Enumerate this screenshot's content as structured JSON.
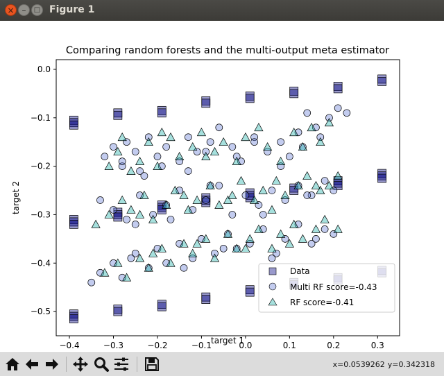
{
  "window": {
    "title": "Figure 1",
    "close_glyph": "×",
    "min_glyph": "–",
    "max_glyph": "□"
  },
  "toolbar": {
    "tools": [
      {
        "name": "home-icon"
      },
      {
        "name": "back-arrow-icon"
      },
      {
        "name": "forward-arrow-icon"
      },
      {
        "name": "pan-move-icon"
      },
      {
        "name": "zoom-magnifier-icon"
      },
      {
        "name": "configure-subplots-icon"
      },
      {
        "name": "save-floppy-icon"
      }
    ],
    "coords": {
      "x": "x=0.0539262",
      "y": "y=0.342318"
    }
  },
  "chart_data": {
    "type": "scatter",
    "title": "Comparing random forests and the multi-output meta estimator",
    "xlabel": "target 1",
    "ylabel": "target 2",
    "xlim": [
      -0.43,
      0.35
    ],
    "ylim": [
      -0.55,
      0.02
    ],
    "xticks": [
      -0.4,
      -0.3,
      -0.2,
      -0.1,
      0.0,
      0.1,
      0.2,
      0.3
    ],
    "xtick_labels": [
      "−0.4",
      "−0.3",
      "−0.2",
      "−0.1",
      "0.0",
      "0.1",
      "0.2",
      "0.3"
    ],
    "yticks": [
      0.0,
      -0.1,
      -0.2,
      -0.3,
      -0.4,
      -0.5
    ],
    "ytick_labels": [
      "0.0",
      "−0.1",
      "−0.2",
      "−0.3",
      "−0.4",
      "−0.5"
    ],
    "grid": false,
    "legend_position": "lower-right",
    "colors": {
      "data": "#000080",
      "multi_rf": "#6a80d8",
      "rf": "#20b2aa"
    },
    "series": [
      {
        "name": "Data",
        "marker": "square",
        "x": [
          -0.39,
          -0.39,
          -0.39,
          -0.39,
          -0.39,
          -0.39,
          -0.39,
          -0.39,
          -0.39,
          -0.29,
          -0.29,
          -0.29,
          -0.29,
          -0.29,
          -0.29,
          -0.29,
          -0.19,
          -0.19,
          -0.19,
          -0.19,
          -0.19,
          -0.19,
          -0.19,
          -0.09,
          -0.09,
          -0.09,
          -0.09,
          -0.09,
          -0.09,
          -0.09,
          0.01,
          0.01,
          0.01,
          0.01,
          0.01,
          0.01,
          0.01,
          0.11,
          0.11,
          0.11,
          0.11,
          0.11,
          0.11,
          0.21,
          0.21,
          0.21,
          0.21,
          0.21,
          0.21,
          0.21,
          0.31,
          0.31,
          0.31,
          0.31,
          0.31,
          0.31,
          0.31
        ],
        "y": [
          -0.105,
          -0.11,
          -0.115,
          -0.31,
          -0.315,
          -0.32,
          -0.505,
          -0.51,
          -0.515,
          -0.09,
          -0.095,
          -0.295,
          -0.3,
          -0.305,
          -0.495,
          -0.5,
          -0.085,
          -0.09,
          -0.28,
          -0.285,
          -0.29,
          -0.485,
          -0.49,
          -0.065,
          -0.07,
          -0.265,
          -0.27,
          -0.275,
          -0.47,
          -0.475,
          -0.055,
          -0.06,
          -0.255,
          -0.26,
          -0.265,
          -0.455,
          -0.46,
          -0.045,
          -0.05,
          -0.245,
          -0.25,
          -0.44,
          -0.445,
          -0.035,
          -0.04,
          -0.23,
          -0.235,
          -0.24,
          -0.43,
          -0.435,
          -0.02,
          -0.025,
          -0.215,
          -0.22,
          -0.225,
          -0.415,
          -0.42
        ]
      },
      {
        "name": "Multi RF score=-0.43",
        "marker": "circle",
        "x": [
          -0.32,
          -0.3,
          -0.28,
          -0.27,
          -0.25,
          -0.24,
          -0.22,
          -0.2,
          -0.18,
          -0.15,
          -0.13,
          -0.11,
          -0.08,
          -0.06,
          -0.03,
          -0.01,
          0.02,
          0.05,
          0.08,
          0.1,
          0.12,
          0.14,
          0.16,
          0.19,
          0.21,
          0.23,
          -0.33,
          -0.3,
          -0.27,
          -0.24,
          -0.21,
          -0.18,
          -0.15,
          -0.12,
          -0.09,
          -0.06,
          -0.03,
          0.0,
          0.03,
          0.06,
          0.09,
          0.12,
          0.15,
          0.18,
          0.2,
          -0.25,
          -0.17,
          -0.08,
          0.04,
          0.14,
          -0.35,
          -0.33,
          -0.3,
          -0.28,
          -0.25,
          -0.22,
          -0.2,
          -0.18,
          -0.15,
          -0.12,
          -0.1,
          -0.07,
          -0.04,
          -0.02,
          0.01,
          0.04,
          0.07,
          0.09,
          0.12,
          0.15,
          0.18,
          0.2,
          -0.26,
          -0.14,
          -0.05,
          0.06,
          0.16,
          -0.28,
          -0.23,
          -0.19,
          -0.13,
          -0.09,
          -0.02,
          0.02,
          0.08,
          0.13,
          0.17
        ],
        "y": [
          -0.18,
          -0.16,
          -0.2,
          -0.15,
          -0.17,
          -0.21,
          -0.14,
          -0.18,
          -0.16,
          -0.19,
          -0.14,
          -0.17,
          -0.15,
          -0.12,
          -0.16,
          -0.19,
          -0.14,
          -0.17,
          -0.15,
          -0.18,
          -0.13,
          -0.09,
          -0.12,
          -0.1,
          -0.08,
          -0.09,
          -0.27,
          -0.29,
          -0.31,
          -0.26,
          -0.3,
          -0.28,
          -0.25,
          -0.29,
          -0.27,
          -0.24,
          -0.3,
          -0.26,
          -0.28,
          -0.25,
          -0.27,
          -0.24,
          -0.26,
          -0.23,
          -0.25,
          -0.32,
          -0.31,
          -0.24,
          -0.3,
          -0.26,
          -0.44,
          -0.42,
          -0.4,
          -0.43,
          -0.38,
          -0.41,
          -0.37,
          -0.4,
          -0.36,
          -0.39,
          -0.35,
          -0.38,
          -0.34,
          -0.37,
          -0.36,
          -0.33,
          -0.38,
          -0.35,
          -0.32,
          -0.36,
          -0.33,
          -0.34,
          -0.39,
          -0.41,
          -0.37,
          -0.39,
          -0.35,
          -0.19,
          -0.22,
          -0.2,
          -0.21,
          -0.17,
          -0.18,
          -0.15,
          -0.2,
          -0.16,
          -0.14
        ]
      },
      {
        "name": "RF score=-0.41",
        "marker": "triangle",
        "x": [
          -0.31,
          -0.29,
          -0.26,
          -0.24,
          -0.22,
          -0.2,
          -0.17,
          -0.15,
          -0.12,
          -0.1,
          -0.07,
          -0.05,
          -0.02,
          0.0,
          0.03,
          0.05,
          0.08,
          0.11,
          0.13,
          0.15,
          0.17,
          0.19,
          -0.28,
          -0.19,
          -0.09,
          -0.34,
          -0.31,
          -0.28,
          -0.26,
          -0.23,
          -0.21,
          -0.18,
          -0.16,
          -0.13,
          -0.11,
          -0.08,
          -0.06,
          -0.03,
          -0.01,
          0.02,
          0.04,
          0.07,
          0.09,
          0.12,
          0.14,
          0.17,
          0.19,
          0.21,
          -0.24,
          -0.14,
          -0.04,
          0.06,
          0.16,
          -0.32,
          -0.29,
          -0.27,
          -0.24,
          -0.22,
          -0.19,
          -0.17,
          -0.14,
          -0.12,
          -0.09,
          -0.07,
          -0.04,
          -0.02,
          0.01,
          0.03,
          0.06,
          0.08,
          0.11,
          0.13,
          0.16,
          0.18,
          0.21,
          -0.21,
          -0.11,
          0.0,
          0.1
        ],
        "y": [
          -0.2,
          -0.17,
          -0.21,
          -0.19,
          -0.15,
          -0.2,
          -0.14,
          -0.18,
          -0.16,
          -0.13,
          -0.17,
          -0.15,
          -0.19,
          -0.14,
          -0.12,
          -0.16,
          -0.19,
          -0.13,
          -0.16,
          -0.12,
          -0.15,
          -0.11,
          -0.14,
          -0.13,
          -0.18,
          -0.32,
          -0.3,
          -0.27,
          -0.29,
          -0.26,
          -0.31,
          -0.28,
          -0.25,
          -0.29,
          -0.27,
          -0.24,
          -0.28,
          -0.26,
          -0.23,
          -0.27,
          -0.25,
          -0.23,
          -0.26,
          -0.24,
          -0.22,
          -0.25,
          -0.24,
          -0.22,
          -0.3,
          -0.26,
          -0.27,
          -0.29,
          -0.24,
          -0.42,
          -0.4,
          -0.43,
          -0.39,
          -0.41,
          -0.37,
          -0.4,
          -0.36,
          -0.38,
          -0.35,
          -0.39,
          -0.34,
          -0.37,
          -0.35,
          -0.33,
          -0.37,
          -0.34,
          -0.32,
          -0.35,
          -0.33,
          -0.31,
          -0.33,
          -0.38,
          -0.36,
          -0.37,
          -0.36
        ]
      }
    ]
  }
}
